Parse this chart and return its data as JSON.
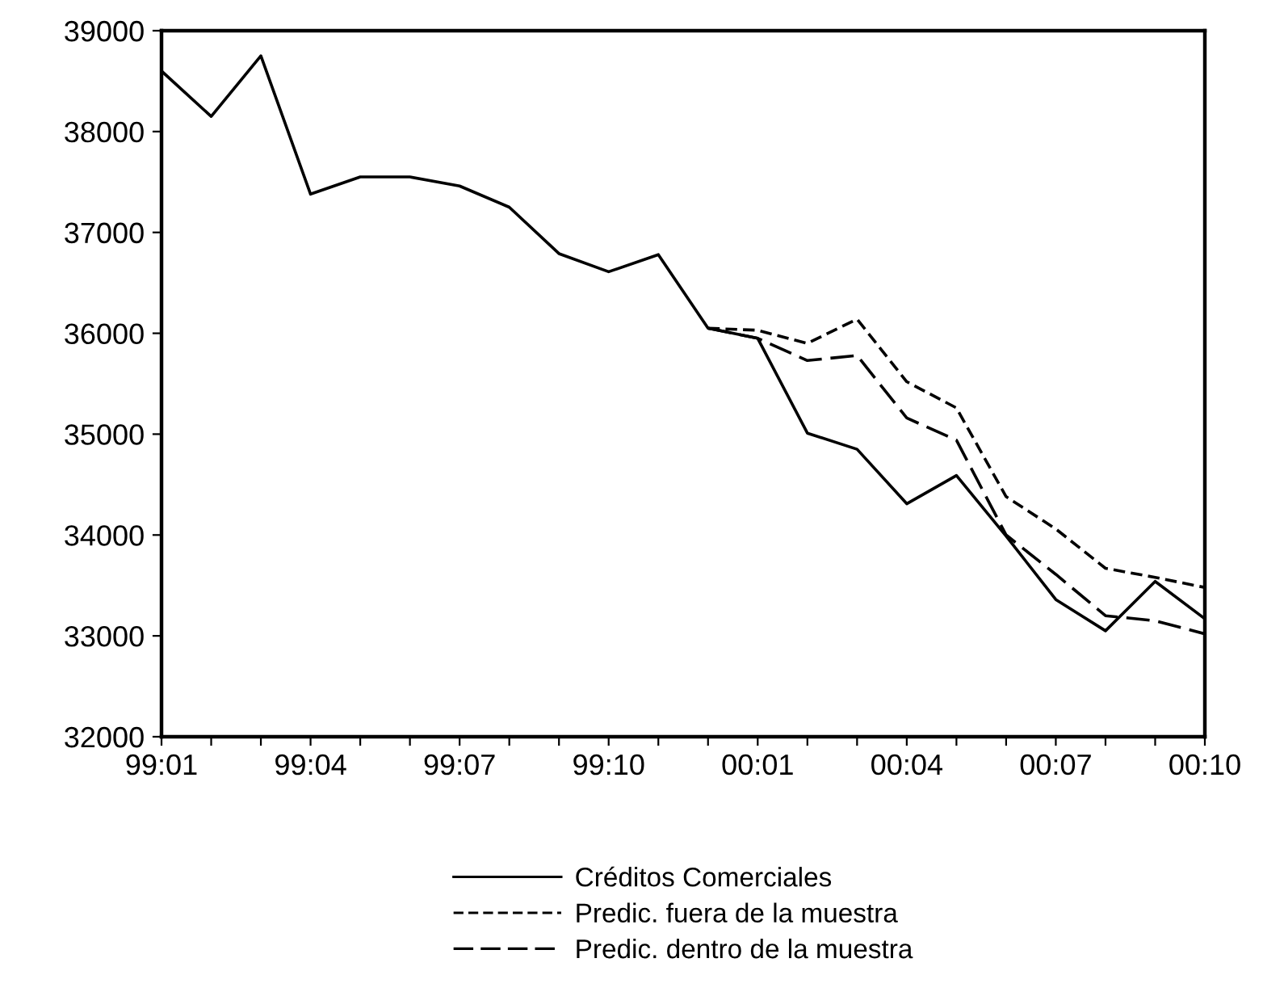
{
  "chart_data": {
    "type": "line",
    "categories": [
      "99:01",
      null,
      null,
      "99:04",
      null,
      null,
      "99:07",
      null,
      null,
      "99:10",
      null,
      null,
      "00:01",
      null,
      null,
      "00:04",
      null,
      null,
      "00:07",
      null,
      null,
      "00:10"
    ],
    "series": [
      {
        "name": "Créditos Comerciales",
        "color": "#000000",
        "line_style": "solid",
        "values": [
          38600,
          38150,
          38750,
          37380,
          37550,
          37550,
          37460,
          37250,
          36790,
          36610,
          36780,
          36050,
          35950,
          35010,
          34850,
          34310,
          34590,
          33990,
          33360,
          33050,
          33540,
          33170
        ]
      },
      {
        "name": "Predic. fuera de la muestra",
        "color": "#000000",
        "line_style": "dashed",
        "values": [
          null,
          null,
          null,
          null,
          null,
          null,
          null,
          null,
          null,
          null,
          null,
          36050,
          36030,
          35900,
          36140,
          35520,
          35260,
          34380,
          34060,
          33670,
          33580,
          33480
        ]
      },
      {
        "name": "Predic. dentro de la muestra",
        "color": "#000000",
        "line_style": "longdash",
        "values": [
          null,
          null,
          null,
          null,
          null,
          null,
          null,
          null,
          null,
          null,
          null,
          36050,
          35950,
          35730,
          35780,
          35160,
          34940,
          34000,
          33610,
          33200,
          33150,
          33020
        ]
      }
    ],
    "ylim": [
      32000,
      39000
    ],
    "yticks": [
      32000,
      33000,
      34000,
      35000,
      36000,
      37000,
      38000,
      39000
    ],
    "legend": "bottom",
    "grid": false
  }
}
